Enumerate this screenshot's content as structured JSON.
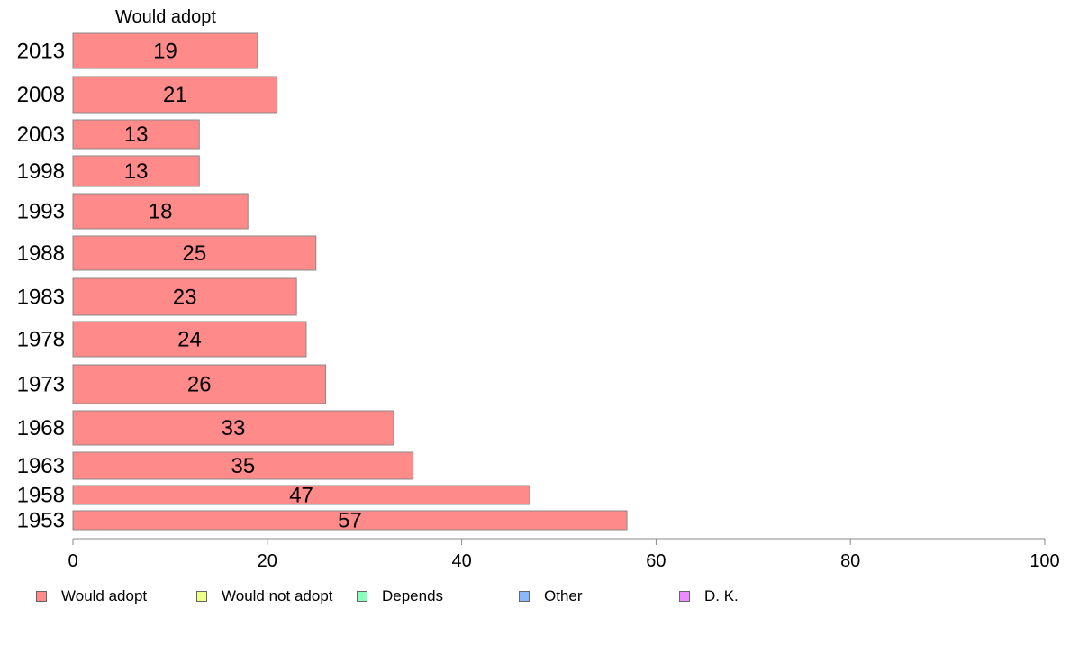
{
  "chart_data": {
    "type": "bar",
    "orientation": "horizontal",
    "series_header": "Would adopt",
    "categories": [
      "2013",
      "2008",
      "2003",
      "1998",
      "1993",
      "1988",
      "1983",
      "1978",
      "1973",
      "1968",
      "1963",
      "1958",
      "1953"
    ],
    "series": [
      {
        "name": "Would adopt",
        "values": [
          19,
          21,
          13,
          13,
          18,
          25,
          23,
          24,
          26,
          33,
          35,
          47,
          57
        ]
      }
    ],
    "data_labels": [
      "19",
      "21",
      "13",
      "13",
      "18",
      "25",
      "23",
      "24",
      "26",
      "33",
      "35",
      "47",
      "57"
    ],
    "xlim": [
      0,
      100
    ],
    "x_ticks": [
      0,
      20,
      40,
      60,
      80,
      100
    ],
    "grid": false,
    "legend": {
      "placement": "bottom",
      "entries": [
        {
          "label": "Would adopt",
          "color": "#ff8a8a"
        },
        {
          "label": "Would not adopt",
          "color": "#eeff8a"
        },
        {
          "label": "Depends",
          "color": "#8affbc"
        },
        {
          "label": "Other",
          "color": "#8ab8ff"
        },
        {
          "label": "D. K.",
          "color": "#ee8aff"
        }
      ]
    },
    "bar_color": "#ff8a8a"
  }
}
